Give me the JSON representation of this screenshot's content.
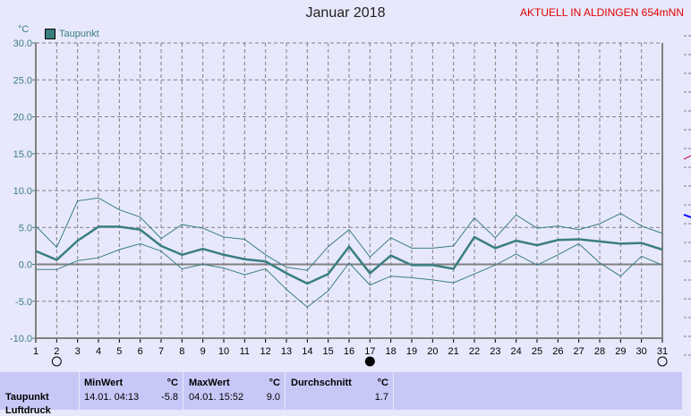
{
  "header": {
    "title": "Januar 2018",
    "station": "AKTUELL IN ALDINGEN 654mNN"
  },
  "chart_data": {
    "type": "line",
    "title": "Januar 2018",
    "ylabel": "°C",
    "ylim": [
      -10,
      30
    ],
    "yticks": [
      "30.0",
      "25.0",
      "20.0",
      "15.0",
      "10.0",
      "5.0",
      "0.0",
      "-5.0",
      "-10.0"
    ],
    "x": [
      1,
      2,
      3,
      4,
      5,
      6,
      7,
      8,
      9,
      10,
      11,
      12,
      13,
      14,
      15,
      16,
      17,
      18,
      19,
      20,
      21,
      22,
      23,
      24,
      25,
      26,
      27,
      28,
      29,
      30,
      31
    ],
    "legend": "top-left",
    "grid": true,
    "series": [
      {
        "name": "Taupunkt",
        "role": "mean",
        "color": "#3a7f80",
        "values": [
          1.8,
          0.6,
          3.2,
          5.1,
          5.1,
          4.7,
          2.5,
          1.3,
          2.1,
          1.3,
          0.7,
          0.4,
          -1.2,
          -2.6,
          -1.3,
          2.4,
          -1.2,
          1.2,
          -0.1,
          -0.1,
          -0.6,
          3.7,
          2.2,
          3.2,
          2.6,
          3.3,
          3.4,
          3.1,
          2.8,
          2.9,
          2.0
        ]
      },
      {
        "role": "max",
        "color": "#3a7f80",
        "values": [
          5.2,
          2.3,
          8.6,
          9.0,
          7.4,
          6.4,
          3.5,
          5.4,
          4.9,
          3.7,
          3.4,
          1.3,
          -0.4,
          -0.8,
          2.4,
          4.7,
          1.0,
          3.6,
          2.2,
          2.2,
          2.5,
          6.3,
          3.6,
          6.7,
          4.9,
          5.2,
          4.7,
          5.5,
          6.9,
          5.2,
          4.2
        ]
      },
      {
        "role": "min",
        "color": "#3a7f80",
        "values": [
          -0.7,
          -0.7,
          0.5,
          0.9,
          2.0,
          2.8,
          1.8,
          -0.6,
          0.0,
          -0.5,
          -1.4,
          -0.6,
          -3.4,
          -5.8,
          -3.6,
          0.2,
          -2.8,
          -1.6,
          -1.8,
          -2.1,
          -2.5,
          -1.3,
          -0.1,
          1.4,
          -0.1,
          1.3,
          2.8,
          0.2,
          -1.6,
          1.1,
          -0.1
        ]
      }
    ],
    "moon_phases": [
      {
        "day": 2,
        "phase": "full-moon-icon"
      },
      {
        "day": 17,
        "phase": "new-moon-icon"
      },
      {
        "day": 31,
        "phase": "full-moon-icon"
      }
    ]
  },
  "stats": {
    "row_label": "Taupunkt",
    "row_label2": "Luftdruck",
    "min": {
      "label": "MinWert",
      "unit": "°C",
      "when": "14.01.  04:13",
      "value": "-5.8"
    },
    "max": {
      "label": "MaxWert",
      "unit": "°C",
      "when": "04.01.  15:52",
      "value": "9.0"
    },
    "avg": {
      "label": "Durchschnitt",
      "unit": "°C",
      "value": "1.7"
    }
  }
}
